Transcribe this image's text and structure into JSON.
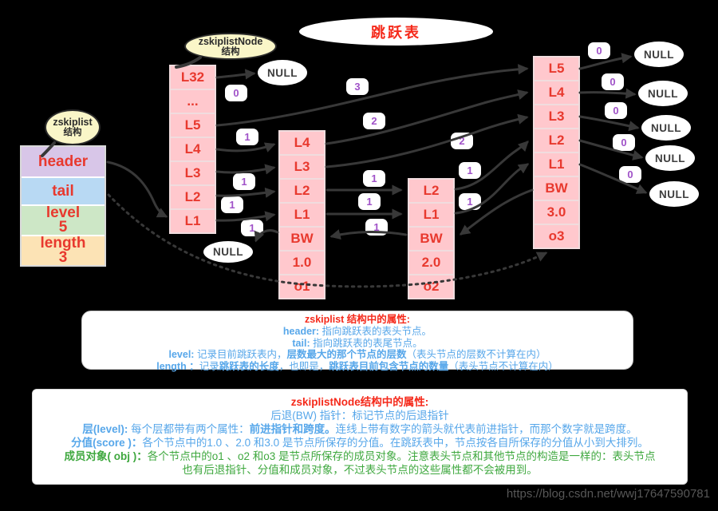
{
  "title": "跳跃表",
  "watermark": "https://blog.csdn.net/wwj17647590781",
  "null_label": "NULL",
  "callouts": {
    "zskiplist": {
      "line1": "zskiplist",
      "line2": "结构"
    },
    "zskiplistNode": {
      "line1": "zskiplistNode",
      "line2": "结构"
    }
  },
  "zskiplist_table": {
    "header": "header",
    "tail": "tail",
    "level_label": "level",
    "level_value": "5",
    "length_label": "length",
    "length_value": "3"
  },
  "nodes": {
    "header_node": {
      "cells": [
        "L32",
        "...",
        "L5",
        "L4",
        "L3",
        "L2",
        "L1"
      ]
    },
    "node_o1": {
      "cells": [
        "L4",
        "L3",
        "L2",
        "L1",
        "BW",
        "1.0",
        "o1"
      ]
    },
    "node_o2": {
      "cells": [
        "L2",
        "L1",
        "BW",
        "2.0",
        "o2"
      ]
    },
    "node_o3": {
      "cells": [
        "L5",
        "L4",
        "L3",
        "L2",
        "L1",
        "BW",
        "3.0",
        "o3"
      ]
    }
  },
  "badges": [
    {
      "v": "0"
    },
    {
      "v": "1"
    },
    {
      "v": "1"
    },
    {
      "v": "1"
    },
    {
      "v": "1"
    },
    {
      "v": "3"
    },
    {
      "v": "2"
    },
    {
      "v": "2"
    },
    {
      "v": "1"
    },
    {
      "v": "1"
    },
    {
      "v": "1"
    },
    {
      "v": "1"
    },
    {
      "v": "1"
    },
    {
      "v": "0"
    },
    {
      "v": "0"
    },
    {
      "v": "0"
    },
    {
      "v": "0"
    },
    {
      "v": "0"
    }
  ],
  "info_box1": {
    "lines": [
      [
        {
          "t": "zskiplist 结构中的属性:",
          "b": true,
          "c": "red"
        }
      ],
      [
        {
          "t": "header:",
          "b": true,
          "c": "blue"
        },
        {
          "t": " 指向跳跃表的表头节点。",
          "c": "blue"
        }
      ],
      [
        {
          "t": "tail:",
          "b": true,
          "c": "blue"
        },
        {
          "t": " 指向跳跃表的表尾节点。",
          "c": "blue"
        }
      ],
      [
        {
          "t": "level:",
          "b": true,
          "c": "blue"
        },
        {
          "t": " 记录目前跳跃表内，",
          "c": "blue"
        },
        {
          "t": "层数最大的那个节点的层数",
          "b": true,
          "c": "blue"
        },
        {
          "t": "（表头节点的层数不计算在内）",
          "c": "blue"
        }
      ],
      [
        {
          "t": "length ：",
          "b": true,
          "c": "blue"
        },
        {
          "t": "记录",
          "c": "blue"
        },
        {
          "t": "跳跃表的长度",
          "b": true,
          "c": "blue"
        },
        {
          "t": "，也即是，",
          "c": "blue"
        },
        {
          "t": "跳跃表目前包含节点的数量",
          "b": true,
          "c": "blue"
        },
        {
          "t": "（表头节点不计算在内）",
          "c": "blue"
        }
      ]
    ]
  },
  "info_box2": {
    "lines": [
      [
        {
          "t": "zskiplistNode结构中的属性:",
          "b": true,
          "c": "red"
        }
      ],
      [
        {
          "t": "后退(BW) 指针：标记节点的后退指针",
          "c": "blue"
        }
      ],
      [
        {
          "t": "层(level):",
          "b": true,
          "c": "blue"
        },
        {
          "t": " 每个层都带有两个属性：",
          "c": "blue"
        },
        {
          "t": "前进指针和跨度。",
          "b": true,
          "c": "blue"
        },
        {
          "t": "连线上带有数字的箭头就代表前进指针，而那个数字就是跨度。",
          "c": "blue"
        }
      ],
      [
        {
          "t": "分值(score )：",
          "b": true,
          "c": "blue"
        },
        {
          "t": "各个节点中的1.0 、2.0 和3.0 是节点所保存的分值。在跳跃表中，节点按各自所保存的分值从小到大排列。",
          "c": "blue"
        }
      ],
      [
        {
          "t": "成员对象( obj )：",
          "b": true,
          "c": "green"
        },
        {
          "t": "各个节点中的o1 、o2 和o3 是节点所保存的成员对象。注意表头节点和其他节点的构造是一样的：表头节点",
          "c": "green"
        }
      ],
      [
        {
          "t": "也有后退指针、分值和成员对象，不过表头节点的这些属性都不会被用到。",
          "c": "green"
        }
      ]
    ]
  },
  "colors": {
    "background": "#000000",
    "node_cell": "#ffc8cd",
    "node_text": "#e8392e",
    "badge_text": "#a052c8",
    "arrow": "#383838",
    "callout_fill": "#faf6c8",
    "header_cell": "#d8c6e8",
    "tail_cell": "#b8d9f3",
    "level_cell": "#cde7c6",
    "length_cell": "#fce3b5",
    "text_blue": "#57a7ea",
    "text_green": "#3fa83f",
    "text_red": "#f5291a"
  }
}
